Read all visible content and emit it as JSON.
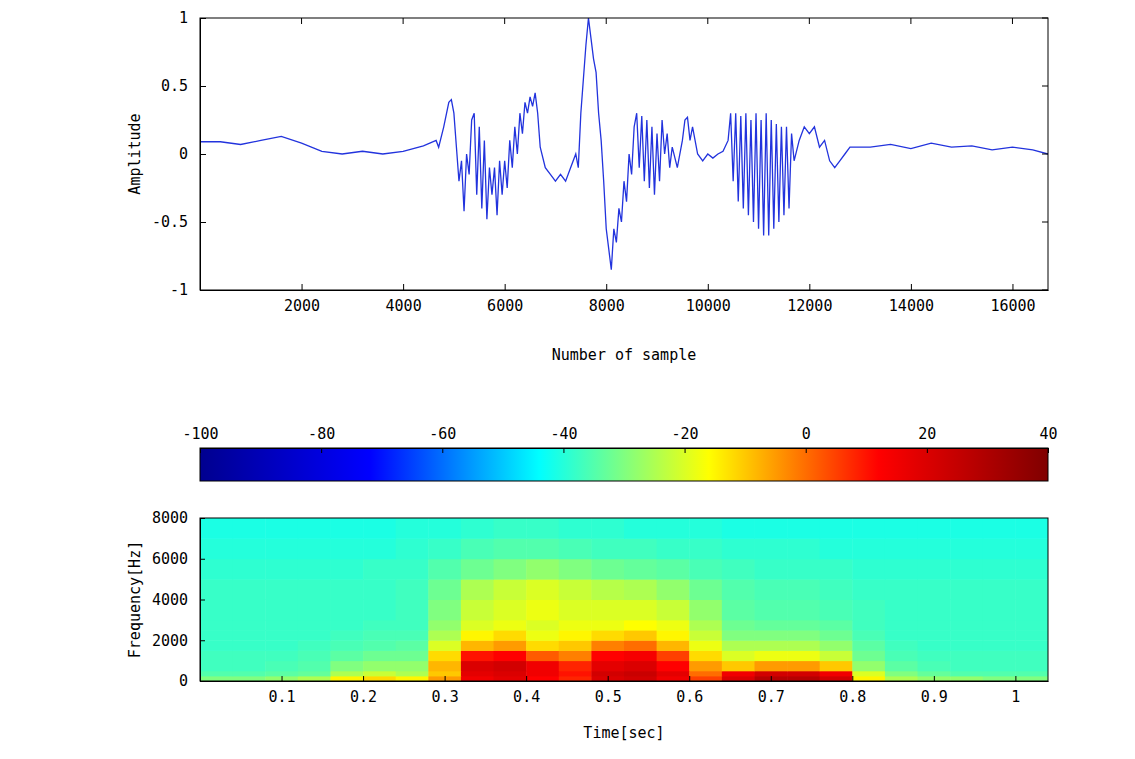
{
  "chart_data": [
    {
      "type": "line",
      "x_label": "Number of sample",
      "y_label": "Amplitude",
      "color": "#2233dd",
      "xlim": [
        0,
        16700
      ],
      "xticks": [
        2000,
        4000,
        6000,
        8000,
        10000,
        12000,
        14000,
        16000
      ],
      "ylim": [
        -1,
        1
      ],
      "yticks": [
        -1,
        -0.5,
        0,
        0.5,
        1
      ],
      "x": [
        0,
        400,
        800,
        1200,
        1600,
        2000,
        2400,
        2800,
        3200,
        3600,
        4000,
        4400,
        4650,
        4700,
        4800,
        4900,
        4950,
        5000,
        5050,
        5100,
        5150,
        5200,
        5250,
        5300,
        5350,
        5400,
        5450,
        5500,
        5550,
        5600,
        5650,
        5700,
        5750,
        5800,
        5850,
        5900,
        5950,
        6000,
        6050,
        6100,
        6150,
        6200,
        6250,
        6300,
        6350,
        6400,
        6450,
        6500,
        6550,
        6600,
        6650,
        6700,
        6800,
        6900,
        7000,
        7100,
        7200,
        7300,
        7400,
        7450,
        7500,
        7550,
        7600,
        7650,
        7700,
        7750,
        7800,
        7850,
        7900,
        7950,
        8000,
        8050,
        8100,
        8150,
        8200,
        8250,
        8300,
        8350,
        8400,
        8450,
        8500,
        8550,
        8600,
        8650,
        8700,
        8750,
        8800,
        8850,
        8900,
        8950,
        9000,
        9050,
        9100,
        9150,
        9200,
        9250,
        9300,
        9400,
        9500,
        9550,
        9600,
        9650,
        9700,
        9800,
        9900,
        10000,
        10100,
        10200,
        10300,
        10400,
        10450,
        10500,
        10550,
        10600,
        10650,
        10700,
        10750,
        10800,
        10850,
        10900,
        10950,
        11000,
        11050,
        11100,
        11150,
        11200,
        11250,
        11300,
        11350,
        11400,
        11450,
        11500,
        11550,
        11600,
        11650,
        11700,
        11800,
        11900,
        12000,
        12100,
        12200,
        12300,
        12400,
        12500,
        12600,
        12700,
        12800,
        13200,
        13600,
        14000,
        14400,
        14800,
        15200,
        15600,
        16000,
        16400,
        16700
      ],
      "values": [
        0.09,
        0.09,
        0.07,
        0.1,
        0.13,
        0.08,
        0.02,
        0,
        0.02,
        0,
        0.02,
        0.06,
        0.1,
        0.05,
        0.2,
        0.38,
        0.4,
        0.3,
        0.05,
        -0.2,
        -0.05,
        -0.42,
        0,
        -0.15,
        0.25,
        0.3,
        -0.3,
        0.2,
        -0.4,
        0.1,
        -0.48,
        -0.1,
        -0.3,
        -0.1,
        -0.45,
        -0.05,
        -0.3,
        -0.05,
        -0.25,
        0.1,
        -0.1,
        0.2,
        0,
        0.3,
        0.15,
        0.38,
        0.3,
        0.42,
        0.35,
        0.45,
        0.3,
        0.05,
        -0.1,
        -0.15,
        -0.2,
        -0.15,
        -0.2,
        -0.1,
        0,
        -0.1,
        0.3,
        0.55,
        0.8,
        1,
        0.85,
        0.7,
        0.6,
        0.3,
        0.1,
        -0.2,
        -0.55,
        -0.7,
        -0.85,
        -0.55,
        -0.65,
        -0.4,
        -0.5,
        -0.2,
        -0.35,
        0,
        -0.15,
        0.2,
        0.3,
        -0.1,
        0.28,
        -0.2,
        0.25,
        -0.25,
        0.2,
        -0.3,
        0.15,
        -0.2,
        0.25,
        0,
        0.15,
        -0.1,
        0.05,
        -0.1,
        0.1,
        0.25,
        0.27,
        0.1,
        0.2,
        0,
        -0.05,
        0,
        -0.03,
        0,
        0.02,
        0.1,
        0.3,
        -0.2,
        0.3,
        -0.35,
        0.28,
        -0.4,
        0.3,
        -0.45,
        0.25,
        -0.5,
        0.3,
        -0.55,
        0.25,
        -0.6,
        0.3,
        -0.6,
        0.25,
        -0.55,
        0.22,
        -0.5,
        0.2,
        -0.45,
        0.2,
        -0.4,
        0.15,
        -0.05,
        0.1,
        0.2,
        0.15,
        0.2,
        0.05,
        0.1,
        -0.05,
        -0.1,
        -0.05,
        0,
        0.05,
        0.05,
        0.07,
        0.04,
        0.08,
        0.05,
        0.06,
        0.03,
        0.05,
        0.03,
        0
      ]
    },
    {
      "type": "heatmap",
      "x_label": "Time[sec]",
      "y_label": "Frequency[Hz]",
      "xlim": [
        0,
        1.04
      ],
      "xticks": [
        0.1,
        0.2,
        0.3,
        0.4,
        0.5,
        0.6,
        0.7,
        0.8,
        0.9,
        1
      ],
      "ylim": [
        0,
        8000
      ],
      "yticks": [
        0,
        2000,
        4000,
        6000,
        8000
      ],
      "time_bins": [
        0,
        0.04,
        0.08,
        0.12,
        0.16,
        0.2,
        0.24,
        0.28,
        0.32,
        0.36,
        0.4,
        0.44,
        0.48,
        0.52,
        0.56,
        0.6,
        0.64,
        0.68,
        0.72,
        0.76,
        0.8,
        0.84,
        0.88,
        0.92,
        0.96,
        1,
        1.04
      ],
      "freq_bins": [
        0,
        250,
        500,
        1000,
        1500,
        2000,
        2500,
        3000,
        4000,
        5000,
        6000,
        7000,
        8000
      ],
      "cells": [
        [
          -30,
          -30,
          -28,
          -25,
          -15,
          -12,
          -15,
          -5,
          15,
          18,
          12,
          8,
          20,
          22,
          15,
          5,
          20,
          28,
          28,
          22,
          -15,
          -25,
          -28,
          -28,
          -30,
          -30
        ],
        [
          -35,
          -35,
          -34,
          -33,
          -25,
          -22,
          -25,
          -10,
          18,
          20,
          15,
          10,
          22,
          24,
          18,
          0,
          15,
          22,
          22,
          15,
          -20,
          -30,
          -33,
          -35,
          -35,
          -35
        ],
        [
          -37,
          -37,
          -36,
          -35,
          -30,
          -28,
          -28,
          -8,
          20,
          22,
          15,
          8,
          18,
          20,
          12,
          -5,
          -10,
          -5,
          -5,
          -10,
          -28,
          -34,
          -36,
          -37,
          -37,
          -37
        ],
        [
          -37,
          -37,
          -37,
          -36,
          -34,
          -32,
          -32,
          -12,
          10,
          12,
          2,
          -2,
          12,
          14,
          5,
          -12,
          -20,
          -18,
          -18,
          -22,
          -32,
          -36,
          -37,
          -37,
          -37,
          -37
        ],
        [
          -38,
          -38,
          -38,
          -37,
          -36,
          -35,
          -34,
          -20,
          -8,
          -5,
          -12,
          -10,
          -2,
          0,
          -8,
          -18,
          -25,
          -25,
          -25,
          -28,
          -34,
          -37,
          -38,
          -38,
          -38,
          -38
        ],
        [
          -38,
          -38,
          -38,
          -38,
          -37,
          -36,
          -36,
          -25,
          -15,
          -12,
          -18,
          -15,
          -12,
          -10,
          -15,
          -22,
          -30,
          -30,
          -30,
          -32,
          -36,
          -38,
          -38,
          -38,
          -38,
          -38
        ],
        [
          -38,
          -38,
          -38,
          -38,
          -38,
          -37,
          -37,
          -28,
          -20,
          -18,
          -20,
          -18,
          -18,
          -16,
          -18,
          -25,
          -32,
          -33,
          -33,
          -34,
          -37,
          -38,
          -38,
          -38,
          -38,
          -38
        ],
        [
          -38,
          -38,
          -38,
          -38,
          -38,
          -38,
          -37,
          -30,
          -22,
          -20,
          -18,
          -20,
          -20,
          -20,
          -22,
          -28,
          -34,
          -35,
          -35,
          -36,
          -37,
          -38,
          -38,
          -38,
          -38,
          -38
        ],
        [
          -38,
          -38,
          -38,
          -38,
          -38,
          -38,
          -37,
          -32,
          -25,
          -22,
          -20,
          -22,
          -24,
          -25,
          -28,
          -32,
          -35,
          -36,
          -36,
          -37,
          -38,
          -38,
          -38,
          -38,
          -38,
          -38
        ],
        [
          -39,
          -39,
          -39,
          -39,
          -39,
          -38,
          -38,
          -35,
          -32,
          -30,
          -28,
          -30,
          -32,
          -33,
          -34,
          -36,
          -37,
          -38,
          -38,
          -38,
          -39,
          -39,
          -39,
          -39,
          -39,
          -39
        ],
        [
          -40,
          -40,
          -40,
          -40,
          -40,
          -40,
          -39,
          -38,
          -36,
          -35,
          -35,
          -36,
          -37,
          -37,
          -38,
          -38,
          -39,
          -39,
          -39,
          -40,
          -40,
          -40,
          -40,
          -40,
          -40,
          -40
        ],
        [
          -41,
          -41,
          -41,
          -41,
          -41,
          -41,
          -40,
          -40,
          -39,
          -38,
          -38,
          -39,
          -39,
          -40,
          -40,
          -40,
          -41,
          -41,
          -41,
          -41,
          -41,
          -41,
          -41,
          -41,
          -41,
          -41
        ]
      ],
      "colorbar": {
        "range": [
          -100,
          40
        ],
        "ticks": [
          -100,
          -80,
          -60,
          -40,
          -20,
          0,
          20,
          40
        ]
      }
    }
  ]
}
